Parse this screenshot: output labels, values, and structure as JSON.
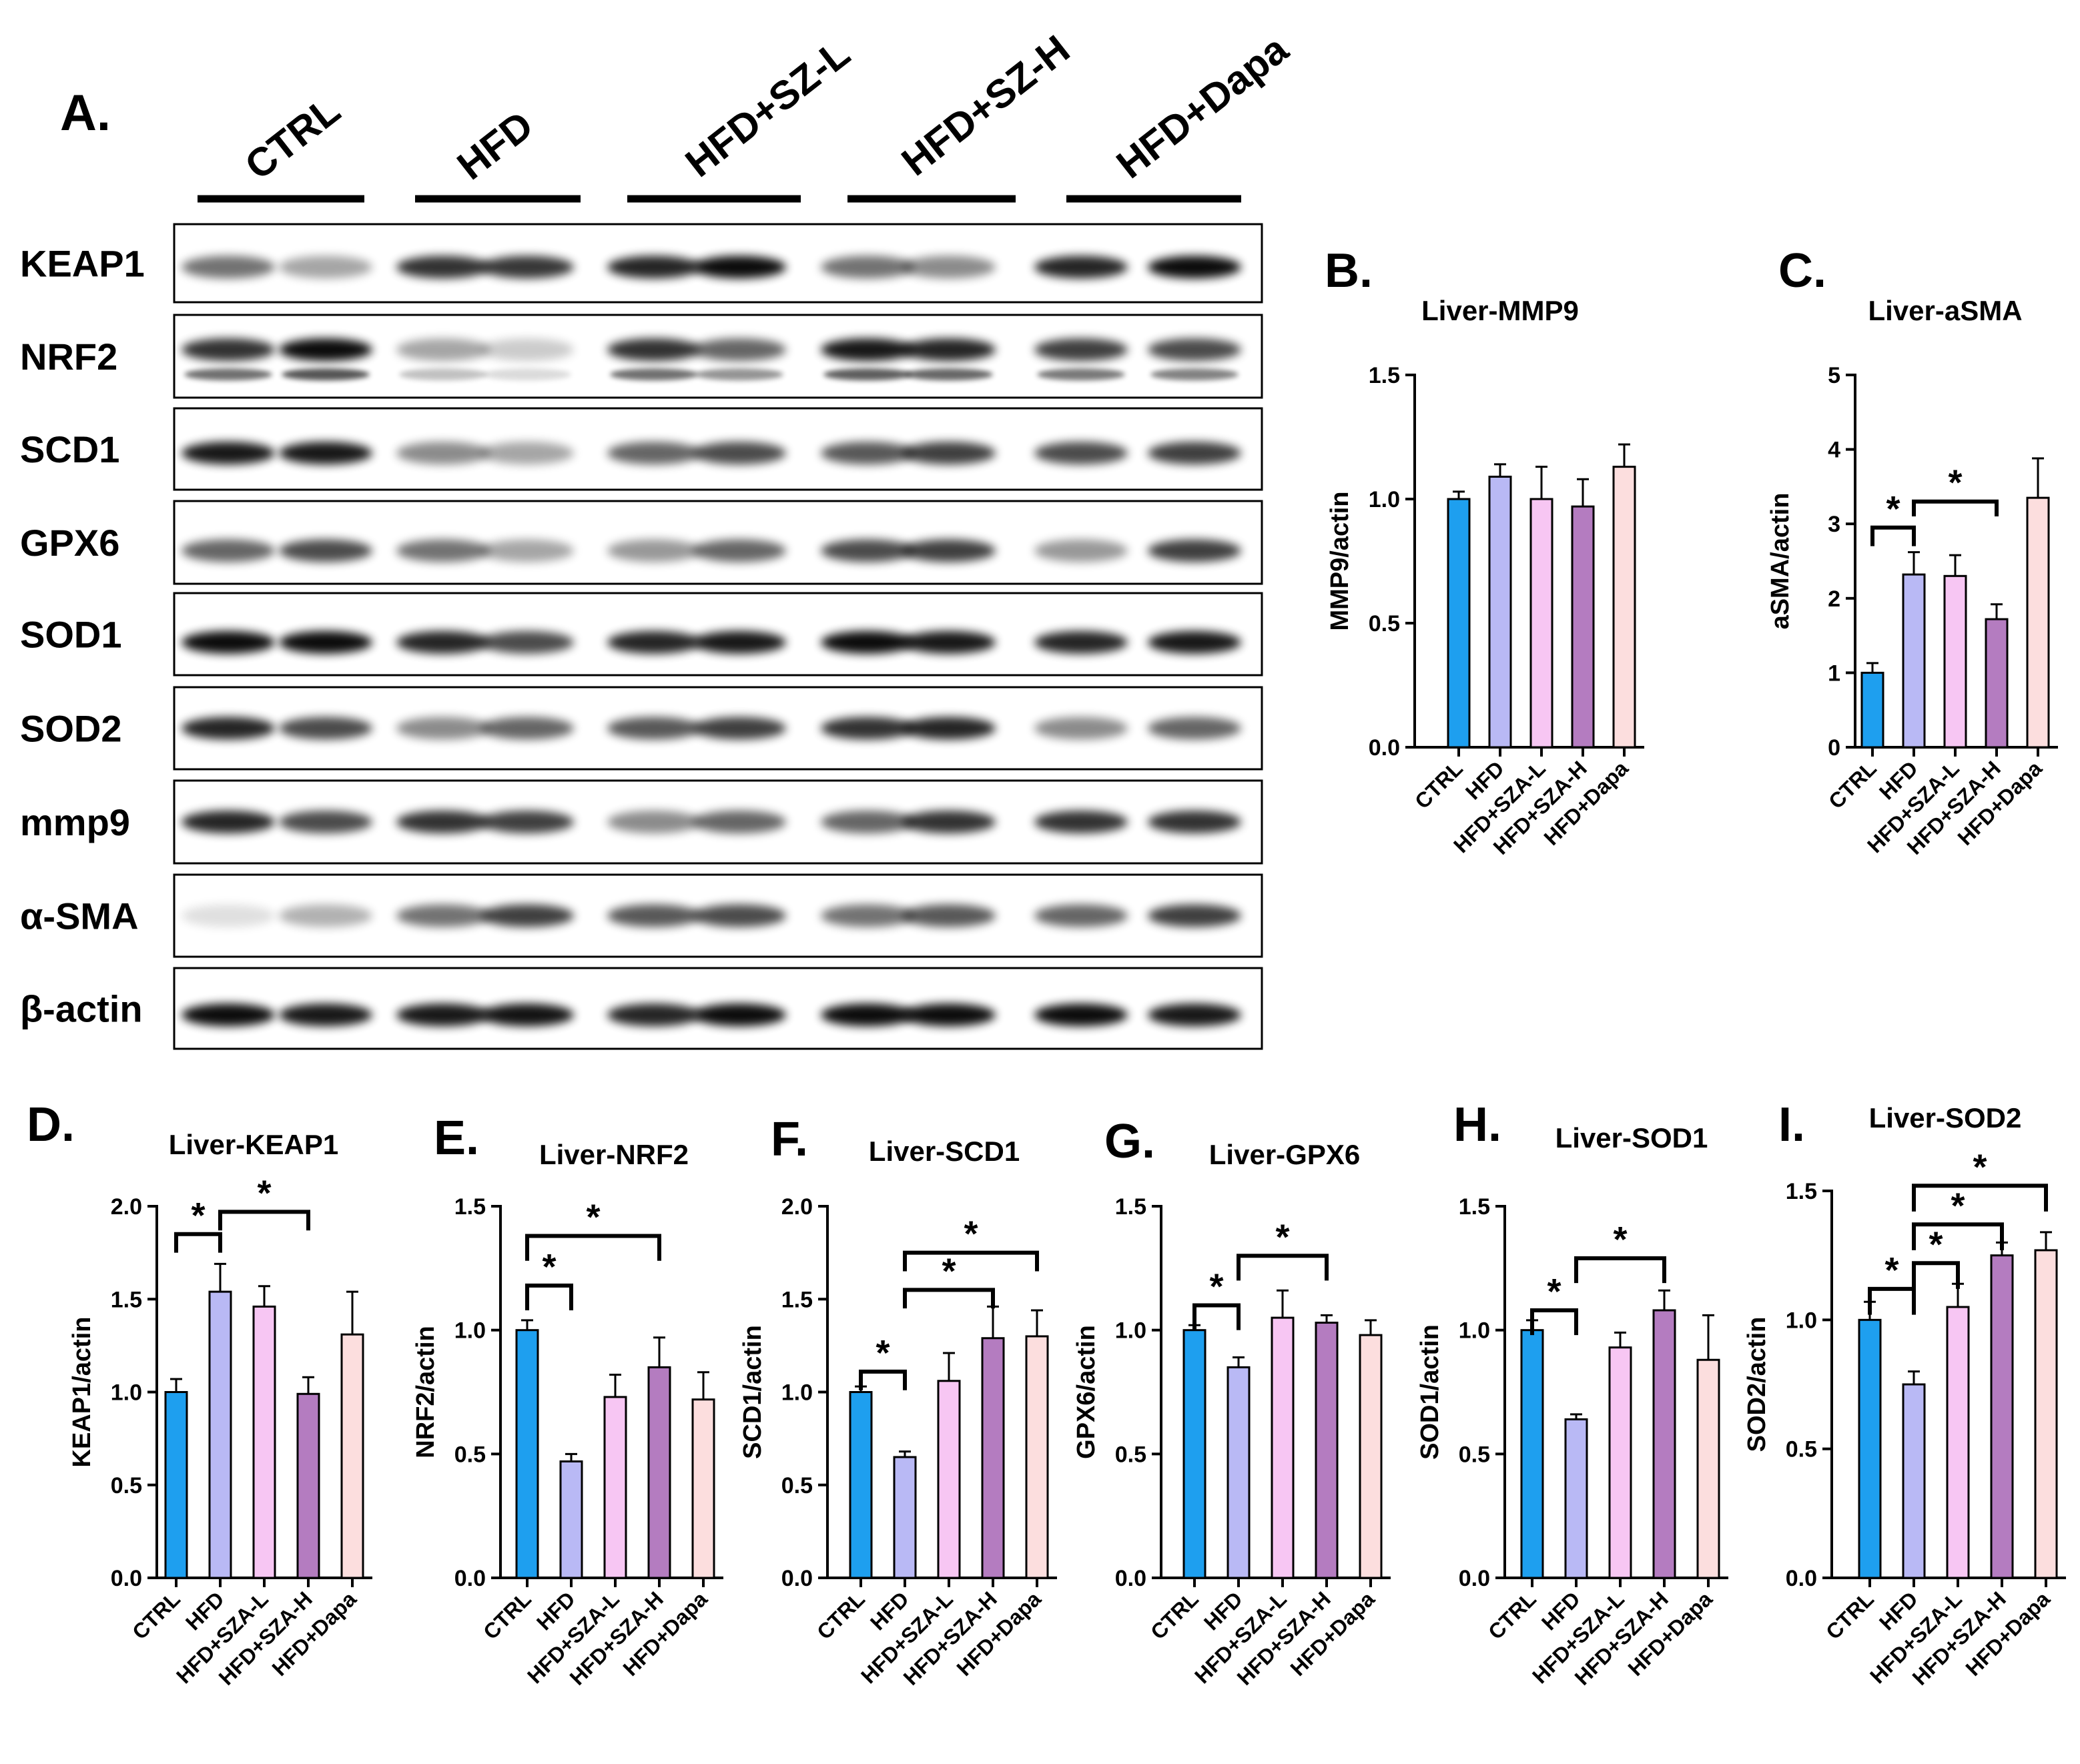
{
  "figure_label_a": "A.",
  "blot": {
    "lanes": [
      "CTRL",
      "HFD",
      "HFD+SZ-L",
      "HFD+SZ-H",
      "HFD+Dapa"
    ],
    "proteins": [
      "KEAP1",
      "NRF2",
      "SCD1",
      "GPX6",
      "SOD1",
      "SOD2",
      "mmp9",
      "α-SMA",
      "β-actin"
    ]
  },
  "colors": {
    "CTRL": "#1e9fef",
    "HFD": "#b9b9f5",
    "HFD+SZA-L": "#f7c6f3",
    "HFD+SZA-H": "#b47cc0",
    "HFD+Dapa": "#fcdede"
  },
  "chart_data": [
    {
      "id": "B",
      "label": "B.",
      "type": "bar",
      "title": "Liver-MMP9",
      "ylabel": "MMP9/actin",
      "categories": [
        "CTRL",
        "HFD",
        "HFD+SZA-L",
        "HFD+SZA-H",
        "HFD+Dapa"
      ],
      "values": [
        1.0,
        1.09,
        1.0,
        0.97,
        1.13
      ],
      "errors": [
        0.03,
        0.05,
        0.13,
        0.11,
        0.09
      ],
      "ylim": [
        0,
        1.5
      ],
      "yticks": [
        "0.0",
        "0.5",
        "1.0",
        "1.5"
      ],
      "sig": []
    },
    {
      "id": "C",
      "label": "C.",
      "type": "bar",
      "title": "Liver-aSMA",
      "ylabel": "aSMA/actin",
      "categories": [
        "CTRL",
        "HFD",
        "HFD+SZA-L",
        "HFD+SZA-H",
        "HFD+Dapa"
      ],
      "values": [
        1.0,
        2.32,
        2.3,
        1.72,
        3.35
      ],
      "errors": [
        0.13,
        0.3,
        0.28,
        0.2,
        0.53
      ],
      "ylim": [
        0,
        5
      ],
      "yticks": [
        "0",
        "1",
        "2",
        "3",
        "4",
        "5"
      ],
      "sig": [
        {
          "from": 0,
          "to": 1,
          "level": 2.95,
          "drop": 0.25,
          "label": "*"
        },
        {
          "from": 1,
          "to": 3,
          "level": 3.3,
          "drop": 0.2,
          "label": "*"
        }
      ]
    },
    {
      "id": "D",
      "label": "D.",
      "type": "bar",
      "title": "Liver-KEAP1",
      "ylabel": "KEAP1/actin",
      "categories": [
        "CTRL",
        "HFD",
        "HFD+SZA-L",
        "HFD+SZA-H",
        "HFD+Dapa"
      ],
      "values": [
        1.0,
        1.54,
        1.46,
        0.99,
        1.31
      ],
      "errors": [
        0.07,
        0.15,
        0.11,
        0.09,
        0.23
      ],
      "ylim": [
        0,
        2.0
      ],
      "yticks": [
        "0.0",
        "0.5",
        "1.0",
        "1.5",
        "2.0"
      ],
      "sig": [
        {
          "from": 0,
          "to": 1,
          "level": 1.85,
          "drop": 0.1,
          "label": "*"
        },
        {
          "from": 1,
          "to": 3,
          "level": 1.97,
          "drop": 0.1,
          "label": "*"
        }
      ]
    },
    {
      "id": "E",
      "label": "E.",
      "type": "bar",
      "title": "Liver-NRF2",
      "ylabel": "NRF2/actin",
      "categories": [
        "CTRL",
        "HFD",
        "HFD+SZA-L",
        "HFD+SZA-H",
        "HFD+Dapa"
      ],
      "values": [
        1.0,
        0.47,
        0.73,
        0.85,
        0.72
      ],
      "errors": [
        0.04,
        0.03,
        0.09,
        0.12,
        0.11
      ],
      "ylim": [
        0,
        1.5
      ],
      "yticks": [
        "0.0",
        "0.5",
        "1.0",
        "1.5"
      ],
      "sig": [
        {
          "from": 0,
          "to": 1,
          "level": 1.18,
          "drop": 0.1,
          "label": "*"
        },
        {
          "from": 0,
          "to": 3,
          "level": 1.38,
          "drop": 0.1,
          "label": "*"
        }
      ]
    },
    {
      "id": "F",
      "label": "F.",
      "type": "bar",
      "title": "Liver-SCD1",
      "ylabel": "SCD1/actin",
      "categories": [
        "CTRL",
        "HFD",
        "HFD+SZA-L",
        "HFD+SZA-H",
        "HFD+Dapa"
      ],
      "values": [
        1.0,
        0.65,
        1.06,
        1.29,
        1.3
      ],
      "errors": [
        0.03,
        0.03,
        0.15,
        0.17,
        0.14
      ],
      "ylim": [
        0,
        2.0
      ],
      "yticks": [
        "0.0",
        "0.5",
        "1.0",
        "1.5",
        "2.0"
      ],
      "sig": [
        {
          "from": 0,
          "to": 1,
          "level": 1.11,
          "drop": 0.1,
          "label": "*"
        },
        {
          "from": 1,
          "to": 3,
          "level": 1.55,
          "drop": 0.1,
          "label": "*"
        },
        {
          "from": 1,
          "to": 4,
          "level": 1.75,
          "drop": 0.1,
          "label": "*"
        }
      ]
    },
    {
      "id": "G",
      "label": "G.",
      "type": "bar",
      "title": "Liver-GPX6",
      "ylabel": "GPX6/actin",
      "categories": [
        "CTRL",
        "HFD",
        "HFD+SZA-L",
        "HFD+SZA-H",
        "HFD+Dapa"
      ],
      "values": [
        1.0,
        0.85,
        1.05,
        1.03,
        0.98
      ],
      "errors": [
        0.02,
        0.04,
        0.11,
        0.03,
        0.06
      ],
      "ylim": [
        0,
        1.5
      ],
      "yticks": [
        "0.0",
        "0.5",
        "1.0",
        "1.5"
      ],
      "sig": [
        {
          "from": 0,
          "to": 1,
          "level": 1.1,
          "drop": 0.1,
          "label": "*"
        },
        {
          "from": 1,
          "to": 3,
          "level": 1.3,
          "drop": 0.1,
          "label": "*"
        }
      ]
    },
    {
      "id": "H",
      "label": "H.",
      "type": "bar",
      "title": "Liver-SOD1",
      "ylabel": "SOD1/actin",
      "categories": [
        "CTRL",
        "HFD",
        "HFD+SZA-L",
        "HFD+SZA-H",
        "HFD+Dapa"
      ],
      "values": [
        1.0,
        0.64,
        0.93,
        1.08,
        0.88
      ],
      "errors": [
        0.04,
        0.02,
        0.06,
        0.08,
        0.18
      ],
      "ylim": [
        0,
        1.5
      ],
      "yticks": [
        "0.0",
        "0.5",
        "1.0",
        "1.5"
      ],
      "sig": [
        {
          "from": 0,
          "to": 1,
          "level": 1.08,
          "drop": 0.1,
          "label": "*"
        },
        {
          "from": 1,
          "to": 3,
          "level": 1.29,
          "drop": 0.1,
          "label": "*"
        }
      ]
    },
    {
      "id": "I",
      "label": "I.",
      "type": "bar",
      "title": "Liver-SOD2",
      "ylabel": "SOD2/actin",
      "categories": [
        "CTRL",
        "HFD",
        "HFD+SZA-L",
        "HFD+SZA-H",
        "HFD+Dapa"
      ],
      "values": [
        1.0,
        0.75,
        1.05,
        1.25,
        1.27
      ],
      "errors": [
        0.07,
        0.05,
        0.09,
        0.05,
        0.07
      ],
      "ylim": [
        0,
        1.5
      ],
      "yticks": [
        "0.0",
        "0.5",
        "1.0",
        "1.5"
      ],
      "sig": [
        {
          "from": 0,
          "to": 1,
          "level": 1.12,
          "drop": 0.1,
          "label": "*"
        },
        {
          "from": 1,
          "to": 2,
          "level": 1.22,
          "drop": 0.1,
          "label": "*"
        },
        {
          "from": 1,
          "to": 3,
          "level": 1.37,
          "drop": 0.1,
          "label": "*"
        },
        {
          "from": 1,
          "to": 4,
          "level": 1.52,
          "drop": 0.1,
          "label": "*"
        }
      ]
    }
  ]
}
